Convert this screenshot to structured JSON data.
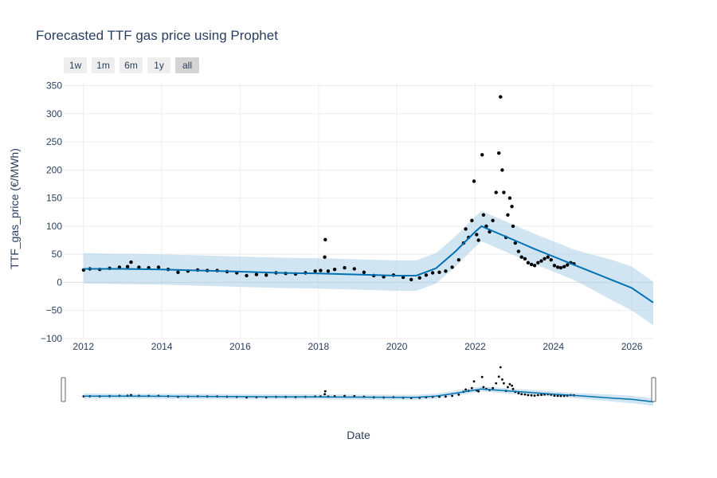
{
  "chart_data": {
    "type": "scatter",
    "title": "Forecasted TTF gas price using Prophet",
    "xlabel": "Date",
    "ylabel": "TTF_gas_price (€/MWh)",
    "xlim": [
      "2011-07-01",
      "2026-07-20"
    ],
    "ylim": [
      -100,
      355
    ],
    "x_ticks": [
      "2012",
      "2014",
      "2016",
      "2018",
      "2020",
      "2022",
      "2024",
      "2026"
    ],
    "y_ticks": [
      "350",
      "300",
      "250",
      "200",
      "150",
      "100",
      "50",
      "0",
      "−50",
      "−100"
    ],
    "grid": true,
    "range_selector": [
      "1w",
      "1m",
      "6m",
      "1y",
      "all"
    ],
    "range_selector_active": "all",
    "colors": {
      "actual": "#000000",
      "forecast": "#0072b2",
      "band": "#a9cde6"
    },
    "series": [
      {
        "type": "markers",
        "x": [
          "2012-01-02",
          "2012-03-01",
          "2012-06-01",
          "2012-09-01",
          "2012-12-01",
          "2013-02-15",
          "2013-03-20",
          "2013-06-01",
          "2013-09-01",
          "2013-12-01",
          "2014-03-01",
          "2014-06-01",
          "2014-09-01",
          "2014-12-01",
          "2015-03-01",
          "2015-06-01",
          "2015-09-01",
          "2015-12-01",
          "2016-03-01",
          "2016-06-01",
          "2016-09-01",
          "2016-12-01",
          "2017-03-01",
          "2017-06-01",
          "2017-09-01",
          "2017-12-01",
          "2018-01-20",
          "2018-02-28",
          "2018-03-05",
          "2018-04-01",
          "2018-06-01",
          "2018-09-01",
          "2018-12-01",
          "2019-03-01",
          "2019-06-01",
          "2019-09-01",
          "2019-12-01",
          "2020-03-01",
          "2020-05-15",
          "2020-08-01",
          "2020-10-01",
          "2020-12-01",
          "2021-02-01",
          "2021-04-01",
          "2021-06-01",
          "2021-08-01",
          "2021-09-15",
          "2021-10-05",
          "2021-11-01",
          "2021-12-01",
          "2021-12-21",
          "2022-01-15",
          "2022-02-01",
          "2022-03-07",
          "2022-03-20",
          "2022-04-15",
          "2022-05-15",
          "2022-06-15",
          "2022-07-15",
          "2022-08-10",
          "2022-08-26",
          "2022-09-10",
          "2022-09-25",
          "2022-10-15",
          "2022-11-01",
          "2022-11-20",
          "2022-12-10",
          "2022-12-20",
          "2023-01-10",
          "2023-02-10",
          "2023-03-10",
          "2023-04-10",
          "2023-05-10",
          "2023-06-10",
          "2023-07-10",
          "2023-08-10",
          "2023-09-10",
          "2023-10-10",
          "2023-11-10",
          "2023-12-10",
          "2024-01-10",
          "2024-02-10",
          "2024-03-10",
          "2024-04-10",
          "2024-05-10",
          "2024-06-10",
          "2024-07-10"
        ],
        "y": [
          22,
          24,
          23,
          25,
          27,
          28,
          36,
          27,
          26,
          27,
          23,
          18,
          20,
          22,
          21,
          21,
          19,
          17,
          12,
          14,
          13,
          17,
          16,
          15,
          17,
          20,
          21,
          45,
          76,
          20,
          23,
          26,
          24,
          18,
          12,
          10,
          13,
          9,
          5,
          8,
          13,
          17,
          18,
          20,
          27,
          40,
          70,
          95,
          80,
          110,
          180,
          85,
          75,
          227,
          120,
          100,
          90,
          110,
          160,
          230,
          330,
          200,
          160,
          80,
          120,
          150,
          135,
          100,
          70,
          55,
          45,
          42,
          35,
          32,
          30,
          35,
          38,
          42,
          45,
          40,
          30,
          27,
          26,
          28,
          31,
          35,
          33
        ]
      },
      {
        "type": "line",
        "x": [
          "2012-01-01",
          "2013-01-01",
          "2014-01-01",
          "2015-01-01",
          "2016-01-01",
          "2017-01-01",
          "2018-01-01",
          "2019-01-01",
          "2020-01-01",
          "2020-07-01",
          "2021-01-01",
          "2021-07-01",
          "2022-01-01",
          "2022-03-01",
          "2022-07-01",
          "2023-01-01",
          "2023-07-01",
          "2024-01-01",
          "2024-07-01",
          "2025-01-01",
          "2025-07-01",
          "2026-01-01",
          "2026-07-20"
        ],
        "y": [
          24,
          24,
          23,
          21,
          19,
          17,
          16,
          14,
          12,
          12,
          25,
          55,
          90,
          100,
          90,
          75,
          60,
          46,
          32,
          18,
          4,
          -10,
          -36
        ]
      },
      {
        "type": "band",
        "x": [
          "2012-01-01",
          "2013-01-01",
          "2014-01-01",
          "2015-01-01",
          "2016-01-01",
          "2017-01-01",
          "2018-01-01",
          "2019-01-01",
          "2020-01-01",
          "2020-07-01",
          "2021-01-01",
          "2021-07-01",
          "2022-01-01",
          "2022-03-01",
          "2022-07-01",
          "2023-01-01",
          "2023-07-01",
          "2024-01-01",
          "2024-07-01",
          "2025-01-01",
          "2025-07-01",
          "2026-01-01",
          "2026-07-20"
        ],
        "lower": [
          -2,
          -3,
          -4,
          -6,
          -8,
          -10,
          -11,
          -13,
          -15,
          -15,
          -2,
          28,
          63,
          73,
          63,
          48,
          33,
          19,
          5,
          -13,
          -32,
          -50,
          -76
        ],
        "upper": [
          52,
          51,
          50,
          48,
          46,
          44,
          43,
          41,
          39,
          39,
          52,
          82,
          117,
          127,
          117,
          102,
          87,
          73,
          59,
          49,
          40,
          28,
          1
        ]
      }
    ]
  }
}
